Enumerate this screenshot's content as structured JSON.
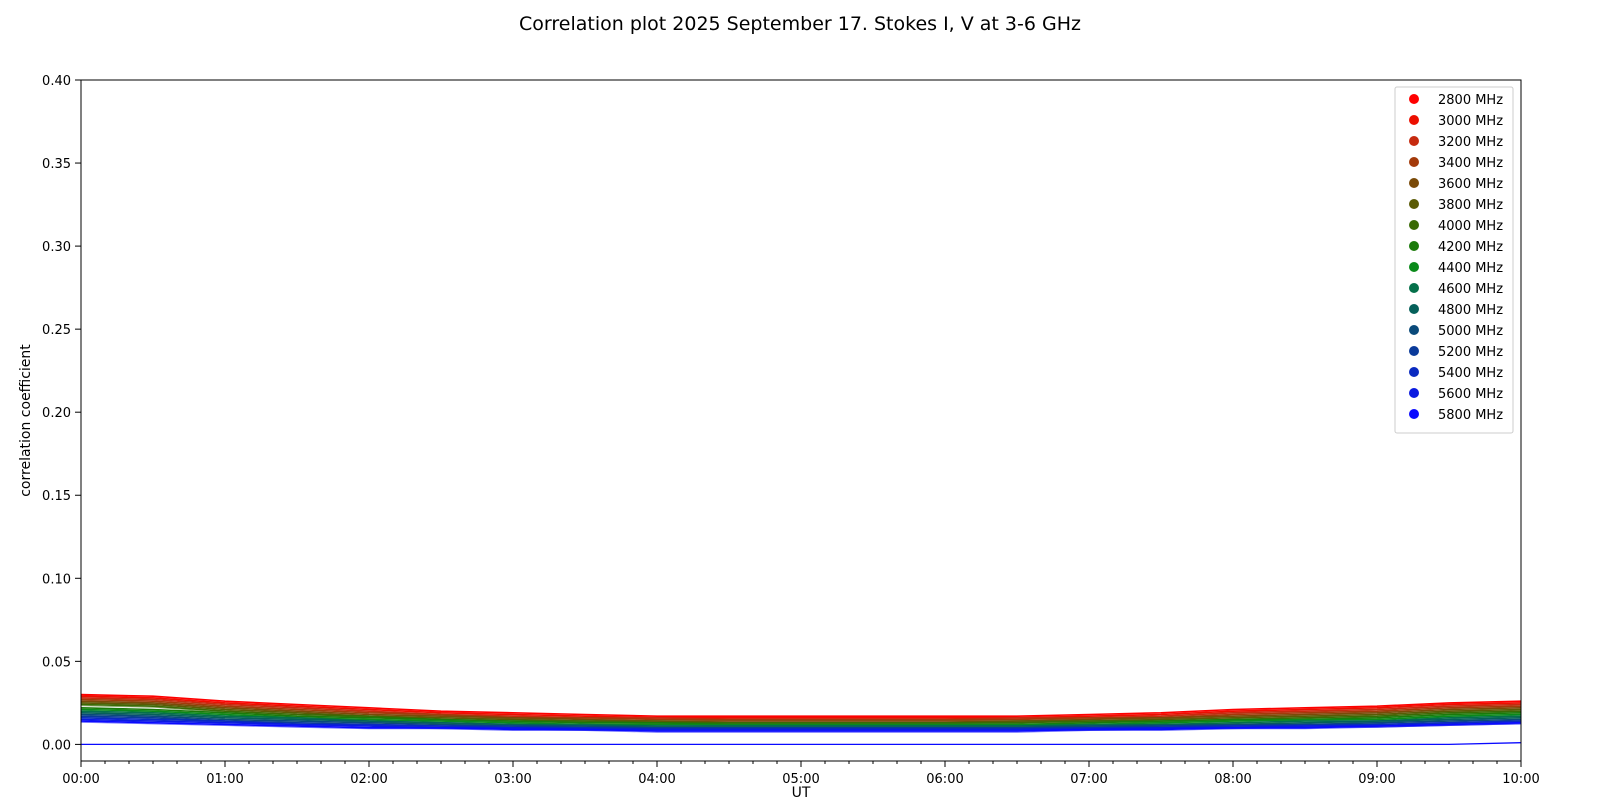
{
  "chart_data": {
    "type": "line",
    "title": "Correlation plot 2025 September 17. Stokes I, V at 3-6 GHz",
    "xlabel": "UT",
    "ylabel": "correlation coefficient",
    "xlim": [
      "00:00",
      "10:00"
    ],
    "ylim": [
      -0.01,
      0.4
    ],
    "x_ticks": [
      "00:00",
      "01:00",
      "02:00",
      "03:00",
      "04:00",
      "05:00",
      "06:00",
      "07:00",
      "08:00",
      "09:00",
      "10:00"
    ],
    "y_ticks": [
      "0.00",
      "0.05",
      "0.10",
      "0.15",
      "0.20",
      "0.25",
      "0.30",
      "0.35",
      "0.40"
    ],
    "grid": false,
    "legend_position": "top-right",
    "x": [
      "00:00",
      "00:30",
      "01:00",
      "01:30",
      "02:00",
      "02:30",
      "03:00",
      "03:30",
      "04:00",
      "04:30",
      "05:00",
      "05:30",
      "06:00",
      "06:30",
      "07:00",
      "07:30",
      "08:00",
      "08:30",
      "09:00",
      "09:30",
      "10:00"
    ],
    "series": [
      {
        "name": "2800 MHz",
        "color": "#ff0000",
        "values": [
          0.03,
          0.029,
          0.026,
          0.024,
          0.022,
          0.02,
          0.019,
          0.018,
          0.017,
          0.017,
          0.017,
          0.017,
          0.017,
          0.017,
          0.018,
          0.019,
          0.021,
          0.022,
          0.023,
          0.025,
          0.026
        ]
      },
      {
        "name": "3000 MHz",
        "color": "#ec0f00",
        "values": [
          0.029,
          0.028,
          0.025,
          0.023,
          0.021,
          0.019,
          0.018,
          0.017,
          0.016,
          0.016,
          0.016,
          0.016,
          0.016,
          0.016,
          0.017,
          0.018,
          0.02,
          0.021,
          0.022,
          0.024,
          0.025
        ]
      },
      {
        "name": "3200 MHz",
        "color": "#c62a0f",
        "values": [
          0.028,
          0.027,
          0.024,
          0.022,
          0.02,
          0.018,
          0.017,
          0.016,
          0.016,
          0.015,
          0.015,
          0.015,
          0.015,
          0.016,
          0.016,
          0.017,
          0.019,
          0.02,
          0.021,
          0.023,
          0.024
        ]
      },
      {
        "name": "3400 MHz",
        "color": "#a33a0a",
        "values": [
          0.027,
          0.026,
          0.023,
          0.021,
          0.019,
          0.018,
          0.016,
          0.016,
          0.015,
          0.015,
          0.015,
          0.015,
          0.015,
          0.015,
          0.016,
          0.016,
          0.018,
          0.019,
          0.02,
          0.022,
          0.023
        ]
      },
      {
        "name": "3600 MHz",
        "color": "#7a4a08",
        "values": [
          0.026,
          0.025,
          0.022,
          0.02,
          0.018,
          0.017,
          0.016,
          0.015,
          0.014,
          0.014,
          0.014,
          0.014,
          0.014,
          0.014,
          0.015,
          0.016,
          0.017,
          0.018,
          0.019,
          0.021,
          0.022
        ]
      },
      {
        "name": "3800 MHz",
        "color": "#5a5a05",
        "values": [
          0.025,
          0.024,
          0.021,
          0.019,
          0.017,
          0.016,
          0.015,
          0.014,
          0.014,
          0.013,
          0.013,
          0.013,
          0.013,
          0.014,
          0.014,
          0.015,
          0.016,
          0.017,
          0.018,
          0.02,
          0.021
        ]
      },
      {
        "name": "4000 MHz",
        "color": "#3a6a05",
        "values": [
          0.024,
          0.023,
          0.02,
          0.018,
          0.017,
          0.015,
          0.014,
          0.014,
          0.013,
          0.013,
          0.013,
          0.013,
          0.013,
          0.013,
          0.014,
          0.014,
          0.015,
          0.016,
          0.017,
          0.019,
          0.02
        ]
      },
      {
        "name": "4200 MHz",
        "color": "#1a7a0a",
        "values": [
          0.022,
          0.021,
          0.019,
          0.017,
          0.016,
          0.015,
          0.014,
          0.013,
          0.013,
          0.012,
          0.012,
          0.012,
          0.012,
          0.012,
          0.013,
          0.014,
          0.015,
          0.015,
          0.016,
          0.018,
          0.019
        ]
      },
      {
        "name": "4400 MHz",
        "color": "#0a8a1a",
        "values": [
          0.021,
          0.02,
          0.018,
          0.016,
          0.015,
          0.014,
          0.013,
          0.012,
          0.012,
          0.012,
          0.012,
          0.012,
          0.012,
          0.012,
          0.012,
          0.013,
          0.014,
          0.015,
          0.015,
          0.017,
          0.018
        ]
      },
      {
        "name": "4600 MHz",
        "color": "#05704a",
        "values": [
          0.02,
          0.019,
          0.017,
          0.016,
          0.014,
          0.013,
          0.012,
          0.012,
          0.011,
          0.011,
          0.011,
          0.011,
          0.011,
          0.011,
          0.012,
          0.012,
          0.013,
          0.014,
          0.014,
          0.016,
          0.017
        ]
      },
      {
        "name": "4800 MHz",
        "color": "#05605a",
        "values": [
          0.019,
          0.018,
          0.016,
          0.015,
          0.014,
          0.013,
          0.012,
          0.011,
          0.011,
          0.011,
          0.011,
          0.011,
          0.011,
          0.011,
          0.011,
          0.012,
          0.012,
          0.013,
          0.014,
          0.015,
          0.016
        ]
      },
      {
        "name": "5000 MHz",
        "color": "#0a4a7a",
        "values": [
          0.018,
          0.017,
          0.015,
          0.014,
          0.013,
          0.012,
          0.011,
          0.011,
          0.01,
          0.01,
          0.01,
          0.01,
          0.01,
          0.01,
          0.011,
          0.011,
          0.012,
          0.012,
          0.013,
          0.014,
          0.015
        ]
      },
      {
        "name": "5200 MHz",
        "color": "#0a3a9a",
        "values": [
          0.017,
          0.016,
          0.014,
          0.013,
          0.012,
          0.011,
          0.011,
          0.01,
          0.01,
          0.01,
          0.01,
          0.01,
          0.01,
          0.01,
          0.01,
          0.011,
          0.011,
          0.012,
          0.012,
          0.013,
          0.014
        ]
      },
      {
        "name": "5400 MHz",
        "color": "#0a2ac0",
        "values": [
          0.016,
          0.015,
          0.014,
          0.012,
          0.012,
          0.011,
          0.01,
          0.01,
          0.009,
          0.009,
          0.009,
          0.009,
          0.009,
          0.009,
          0.01,
          0.01,
          0.011,
          0.011,
          0.012,
          0.013,
          0.014
        ]
      },
      {
        "name": "5600 MHz",
        "color": "#0a1ae0",
        "values": [
          0.015,
          0.014,
          0.013,
          0.012,
          0.011,
          0.01,
          0.01,
          0.009,
          0.009,
          0.009,
          0.009,
          0.009,
          0.009,
          0.009,
          0.009,
          0.01,
          0.01,
          0.011,
          0.011,
          0.012,
          0.013
        ]
      },
      {
        "name": "5800 MHz",
        "color": "#0a0aff",
        "values": [
          0.014,
          0.013,
          0.012,
          0.011,
          0.01,
          0.01,
          0.009,
          0.009,
          0.008,
          0.008,
          0.008,
          0.008,
          0.008,
          0.008,
          0.009,
          0.009,
          0.01,
          0.01,
          0.011,
          0.012,
          0.013
        ]
      }
    ],
    "stokes_v_baseline": {
      "color": "#0a0aff",
      "values": [
        0.0,
        0.0,
        0.0,
        0.0,
        0.0,
        0.0,
        0.0,
        0.0,
        0.0,
        0.0,
        0.0,
        0.0,
        0.0,
        0.0,
        0.0,
        0.0,
        0.0,
        0.0,
        0.0,
        0.0,
        0.001
      ]
    }
  }
}
